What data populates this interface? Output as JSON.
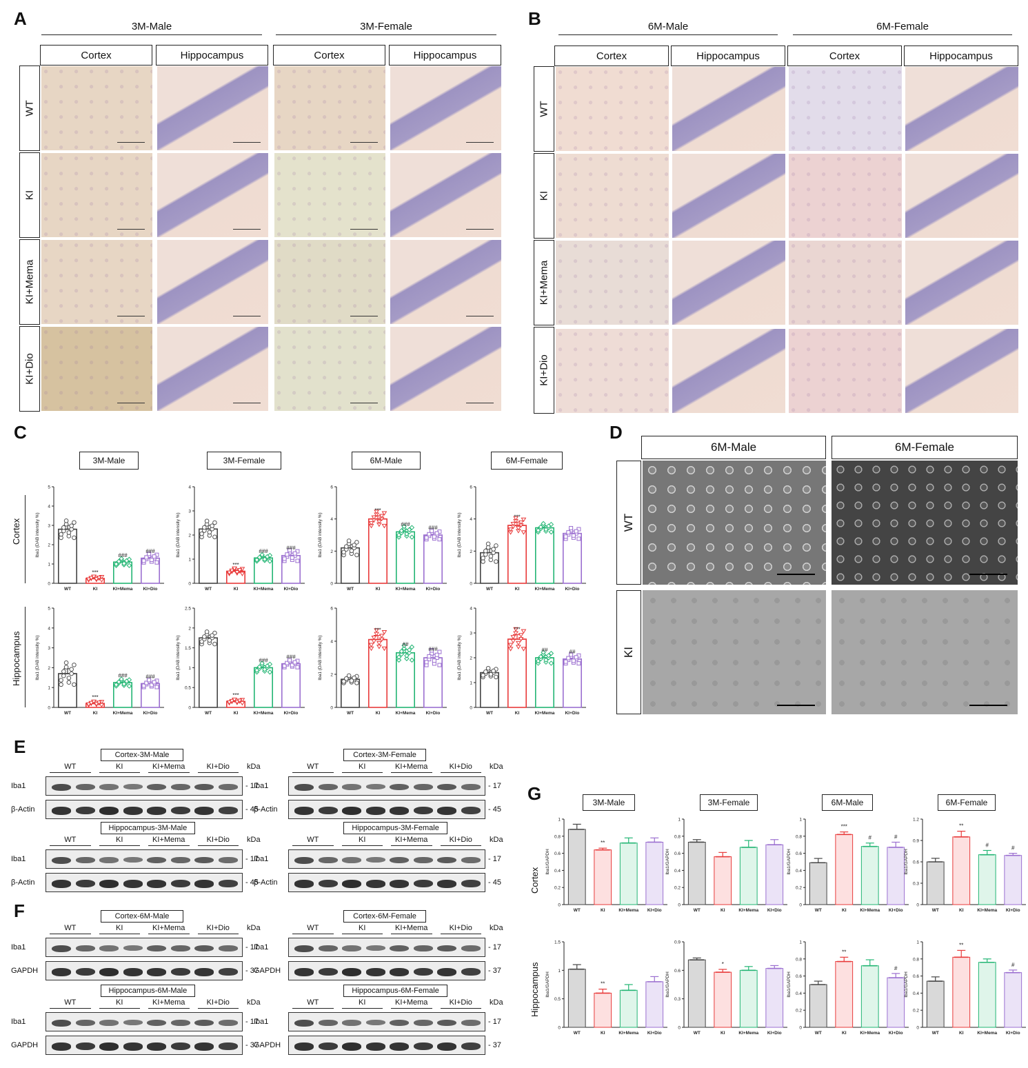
{
  "panels": {
    "A": "A",
    "B": "B",
    "C": "C",
    "D": "D",
    "E": "E",
    "F": "F",
    "G": "G"
  },
  "panel_A": {
    "groups": [
      "3M-Male",
      "3M-Female"
    ],
    "columns": [
      "Cortex",
      "Hippocampus",
      "Cortex",
      "Hippocampus"
    ],
    "rows": [
      "WT",
      "KI",
      "KI+Mema",
      "KI+Dio"
    ]
  },
  "panel_B": {
    "groups": [
      "6M-Male",
      "6M-Female"
    ],
    "columns": [
      "Cortex",
      "Hippocampus",
      "Cortex",
      "Hippocampus"
    ],
    "rows": [
      "WT",
      "KI",
      "KI+Mema",
      "KI+Dio"
    ]
  },
  "panel_D": {
    "columns": [
      "6M-Male",
      "6M-Female"
    ],
    "rows": [
      "WT",
      "KI"
    ]
  },
  "panel_C": {
    "row_labels": [
      "Cortex",
      "Hippocampus"
    ],
    "titles": [
      "3M-Male",
      "3M-Female",
      "6M-Male",
      "6M-Female"
    ]
  },
  "panel_E": {
    "blots": [
      {
        "title": "Cortex-3M-Male",
        "rows": [
          "Iba1",
          "β-Actin"
        ],
        "kda": [
          "17",
          "45"
        ]
      },
      {
        "title": "Cortex-3M-Female",
        "rows": [
          "Iba1",
          "β-Actin"
        ],
        "kda": [
          "17",
          "45"
        ]
      },
      {
        "title": "Hippocampus-3M-Male",
        "rows": [
          "Iba1",
          "β-Actin"
        ],
        "kda": [
          "17",
          "45"
        ]
      },
      {
        "title": "Hippocampus-3M-Female",
        "rows": [
          "Iba1",
          "β-Actin"
        ],
        "kda": [
          "17",
          "45"
        ]
      }
    ]
  },
  "panel_F": {
    "blots": [
      {
        "title": "Cortex-6M-Male",
        "rows": [
          "Iba1",
          "GAPDH"
        ],
        "kda": [
          "17",
          "37"
        ]
      },
      {
        "title": "Cortex-6M-Female",
        "rows": [
          "Iba1",
          "GAPDH"
        ],
        "kda": [
          "17",
          "37"
        ]
      },
      {
        "title": "Hippocampus-6M-Male",
        "rows": [
          "Iba1",
          "GAPDH"
        ],
        "kda": [
          "17",
          "37"
        ]
      },
      {
        "title": "Hippocampus-6M-Female",
        "rows": [
          "Iba1",
          "GAPDH"
        ],
        "kda": [
          "17",
          "37"
        ]
      }
    ]
  },
  "blot_common": {
    "lanes": [
      "WT",
      "KI",
      "KI+Mema",
      "KI+Dio"
    ],
    "kda_unit": "kDa"
  },
  "panel_G": {
    "row_labels": [
      "Cortex",
      "Hippocampus"
    ],
    "titles": [
      "3M-Male",
      "3M-Female",
      "6M-Male",
      "6M-Female"
    ]
  },
  "colors": {
    "WT": "#444444",
    "KI": "#e83a3a",
    "KI+Mema": "#22b573",
    "KI+Dio": "#9b6fd0",
    "WT_fill_G": "#d9d9d9",
    "KI_fill_G": "#fde0e0",
    "Mema_fill_G": "#dff5ea",
    "Dio_fill_G": "#ebe3f7"
  },
  "chart_data": [
    {
      "type": "bar",
      "panel": "C",
      "region": "Cortex",
      "title": "3M-Male",
      "ylabel": "Iba1 (DAB intensity %)",
      "categories": [
        "WT",
        "KI",
        "KI+Mema",
        "KI+Dio"
      ],
      "values": [
        2.8,
        0.25,
        1.1,
        1.3
      ],
      "errors": [
        0.2,
        0.04,
        0.08,
        0.1
      ],
      "ylim": [
        0,
        5
      ],
      "yticks": [
        0,
        1,
        2,
        3,
        4,
        5
      ],
      "annotations": [
        "",
        "***",
        "###",
        "###"
      ]
    },
    {
      "type": "bar",
      "panel": "C",
      "region": "Cortex",
      "title": "3M-Female",
      "ylabel": "Iba1 (DAB intensity %)",
      "categories": [
        "WT",
        "KI",
        "KI+Mema",
        "KI+Dio"
      ],
      "values": [
        2.25,
        0.5,
        1.05,
        1.15
      ],
      "errors": [
        0.15,
        0.05,
        0.06,
        0.1
      ],
      "ylim": [
        0,
        4
      ],
      "yticks": [
        0,
        1,
        2,
        3,
        4
      ],
      "annotations": [
        "",
        "***",
        "###",
        "###"
      ]
    },
    {
      "type": "bar",
      "panel": "C",
      "region": "Cortex",
      "title": "6M-Male",
      "ylabel": "Iba1 (DAB intensity %)",
      "categories": [
        "WT",
        "KI",
        "KI+Mema",
        "KI+Dio"
      ],
      "values": [
        2.2,
        4.0,
        3.2,
        3.0
      ],
      "errors": [
        0.2,
        0.2,
        0.15,
        0.12
      ],
      "ylim": [
        0,
        6
      ],
      "yticks": [
        0,
        2,
        4,
        6
      ],
      "annotations": [
        "",
        "***",
        "###",
        "###"
      ]
    },
    {
      "type": "bar",
      "panel": "C",
      "region": "Cortex",
      "title": "6M-Female",
      "ylabel": "Iba1 (DAB intensity %)",
      "categories": [
        "WT",
        "KI",
        "KI+Mema",
        "KI+Dio"
      ],
      "values": [
        1.9,
        3.6,
        3.45,
        3.1
      ],
      "errors": [
        0.25,
        0.2,
        0.12,
        0.15
      ],
      "ylim": [
        0,
        6
      ],
      "yticks": [
        0,
        2,
        4,
        6
      ],
      "annotations": [
        "",
        "***",
        "",
        ""
      ]
    },
    {
      "type": "bar",
      "panel": "C",
      "region": "Hippocampus",
      "title": "3M-Male",
      "ylabel": "Iba1 (DAB intensity %)",
      "categories": [
        "WT",
        "KI",
        "KI+Mema",
        "KI+Dio"
      ],
      "values": [
        1.7,
        0.2,
        1.25,
        1.2
      ],
      "errors": [
        0.25,
        0.04,
        0.08,
        0.08
      ],
      "ylim": [
        0,
        5
      ],
      "yticks": [
        0,
        1,
        2,
        3,
        4,
        5
      ],
      "annotations": [
        "",
        "***",
        "###",
        "###"
      ]
    },
    {
      "type": "bar",
      "panel": "C",
      "region": "Hippocampus",
      "title": "3M-Female",
      "ylabel": "Iba1 (DAB intensity %)",
      "categories": [
        "WT",
        "KI",
        "KI+Mema",
        "KI+Dio"
      ],
      "values": [
        1.75,
        0.15,
        1.0,
        1.1
      ],
      "errors": [
        0.07,
        0.02,
        0.05,
        0.04
      ],
      "ylim": [
        0,
        2.5
      ],
      "yticks": [
        0.0,
        0.5,
        1.0,
        1.5,
        2.0,
        2.5
      ],
      "annotations": [
        "",
        "***",
        "###",
        "###"
      ]
    },
    {
      "type": "bar",
      "panel": "C",
      "region": "Hippocampus",
      "title": "6M-Male",
      "ylabel": "Iba1 (DAB intensity %)",
      "categories": [
        "WT",
        "KI",
        "KI+Mema",
        "KI+Dio"
      ],
      "values": [
        1.7,
        4.1,
        3.3,
        3.0
      ],
      "errors": [
        0.1,
        0.25,
        0.2,
        0.2
      ],
      "ylim": [
        0,
        6
      ],
      "yticks": [
        0,
        2,
        4,
        6
      ],
      "annotations": [
        "",
        "***",
        "##",
        "###"
      ]
    },
    {
      "type": "bar",
      "panel": "C",
      "region": "Hippocampus",
      "title": "6M-Female",
      "ylabel": "Iba1 (DAB intensity %)",
      "categories": [
        "WT",
        "KI",
        "KI+Mema",
        "KI+Dio"
      ],
      "values": [
        1.4,
        2.75,
        2.0,
        1.95
      ],
      "errors": [
        0.08,
        0.18,
        0.1,
        0.08
      ],
      "ylim": [
        0,
        4
      ],
      "yticks": [
        0,
        1,
        2,
        3,
        4
      ],
      "annotations": [
        "",
        "***",
        "##",
        "##"
      ]
    },
    {
      "type": "bar",
      "panel": "G",
      "region": "Cortex",
      "title": "3M-Male",
      "ylabel": "Iba1/GAPDH",
      "categories": [
        "WT",
        "KI",
        "KI+Mema",
        "KI+Dio"
      ],
      "values": [
        0.88,
        0.64,
        0.72,
        0.73
      ],
      "errors": [
        0.06,
        0.02,
        0.06,
        0.05
      ],
      "ylim": [
        0,
        1.0
      ],
      "yticks": [
        0.0,
        0.2,
        0.4,
        0.6,
        0.8,
        1.0
      ],
      "annotations": [
        "",
        "**",
        "",
        ""
      ]
    },
    {
      "type": "bar",
      "panel": "G",
      "region": "Cortex",
      "title": "3M-Female",
      "ylabel": "Iba1/GAPDH",
      "categories": [
        "WT",
        "KI",
        "KI+Mema",
        "KI+Dio"
      ],
      "values": [
        0.73,
        0.56,
        0.67,
        0.7
      ],
      "errors": [
        0.03,
        0.05,
        0.08,
        0.06
      ],
      "ylim": [
        0,
        1.0
      ],
      "yticks": [
        0.0,
        0.2,
        0.4,
        0.6,
        0.8,
        1.0
      ],
      "annotations": [
        "",
        "",
        "",
        ""
      ]
    },
    {
      "type": "bar",
      "panel": "G",
      "region": "Cortex",
      "title": "6M-Male",
      "ylabel": "Iba1/GAPDH",
      "categories": [
        "WT",
        "KI",
        "KI+Mema",
        "KI+Dio"
      ],
      "values": [
        0.49,
        0.82,
        0.68,
        0.67
      ],
      "errors": [
        0.05,
        0.03,
        0.04,
        0.06
      ],
      "ylim": [
        0,
        1.0
      ],
      "yticks": [
        0.0,
        0.2,
        0.4,
        0.6,
        0.8,
        1.0
      ],
      "annotations": [
        "",
        "***",
        "#",
        "#"
      ]
    },
    {
      "type": "bar",
      "panel": "G",
      "region": "Cortex",
      "title": "6M-Female",
      "ylabel": "Iba1/GAPDH",
      "categories": [
        "WT",
        "KI",
        "KI+Mema",
        "KI+Dio"
      ],
      "values": [
        0.6,
        0.95,
        0.7,
        0.69
      ],
      "errors": [
        0.05,
        0.08,
        0.06,
        0.03
      ],
      "ylim": [
        0,
        1.2
      ],
      "yticks": [
        0.0,
        0.3,
        0.6,
        0.9,
        1.2
      ],
      "annotations": [
        "",
        "**",
        "#",
        "#"
      ]
    },
    {
      "type": "bar",
      "panel": "G",
      "region": "Hippocampus",
      "title": "3M-Male",
      "ylabel": "Iba1/GAPDH",
      "categories": [
        "WT",
        "KI",
        "KI+Mema",
        "KI+Dio"
      ],
      "values": [
        1.02,
        0.6,
        0.65,
        0.8
      ],
      "errors": [
        0.08,
        0.07,
        0.1,
        0.09
      ],
      "ylim": [
        0,
        1.5
      ],
      "yticks": [
        0.0,
        0.5,
        1.0,
        1.5
      ],
      "annotations": [
        "",
        "**",
        "",
        ""
      ]
    },
    {
      "type": "bar",
      "panel": "G",
      "region": "Hippocampus",
      "title": "3M-Female",
      "ylabel": "Iba1/GAPDH",
      "categories": [
        "WT",
        "KI",
        "KI+Mema",
        "KI+Dio"
      ],
      "values": [
        0.71,
        0.58,
        0.6,
        0.62
      ],
      "errors": [
        0.02,
        0.03,
        0.04,
        0.03
      ],
      "ylim": [
        0,
        0.9
      ],
      "yticks": [
        0.0,
        0.3,
        0.6,
        0.9
      ],
      "annotations": [
        "",
        "*",
        "",
        ""
      ]
    },
    {
      "type": "bar",
      "panel": "G",
      "region": "Hippocampus",
      "title": "6M-Male",
      "ylabel": "Iba1/GAPDH",
      "categories": [
        "WT",
        "KI",
        "KI+Mema",
        "KI+Dio"
      ],
      "values": [
        0.5,
        0.77,
        0.72,
        0.58
      ],
      "errors": [
        0.04,
        0.05,
        0.07,
        0.05
      ],
      "ylim": [
        0,
        1.0
      ],
      "yticks": [
        0.0,
        0.2,
        0.4,
        0.6,
        0.8,
        1.0
      ],
      "annotations": [
        "",
        "**",
        "",
        "#"
      ]
    },
    {
      "type": "bar",
      "panel": "G",
      "region": "Hippocampus",
      "title": "6M-Female",
      "ylabel": "Iba1/GAPDH",
      "categories": [
        "WT",
        "KI",
        "KI+Mema",
        "KI+Dio"
      ],
      "values": [
        0.54,
        0.82,
        0.76,
        0.64
      ],
      "errors": [
        0.05,
        0.08,
        0.04,
        0.03
      ],
      "ylim": [
        0,
        1.0
      ],
      "yticks": [
        0.0,
        0.2,
        0.4,
        0.6,
        0.8,
        1.0
      ],
      "annotations": [
        "",
        "**",
        "",
        "#"
      ]
    }
  ]
}
